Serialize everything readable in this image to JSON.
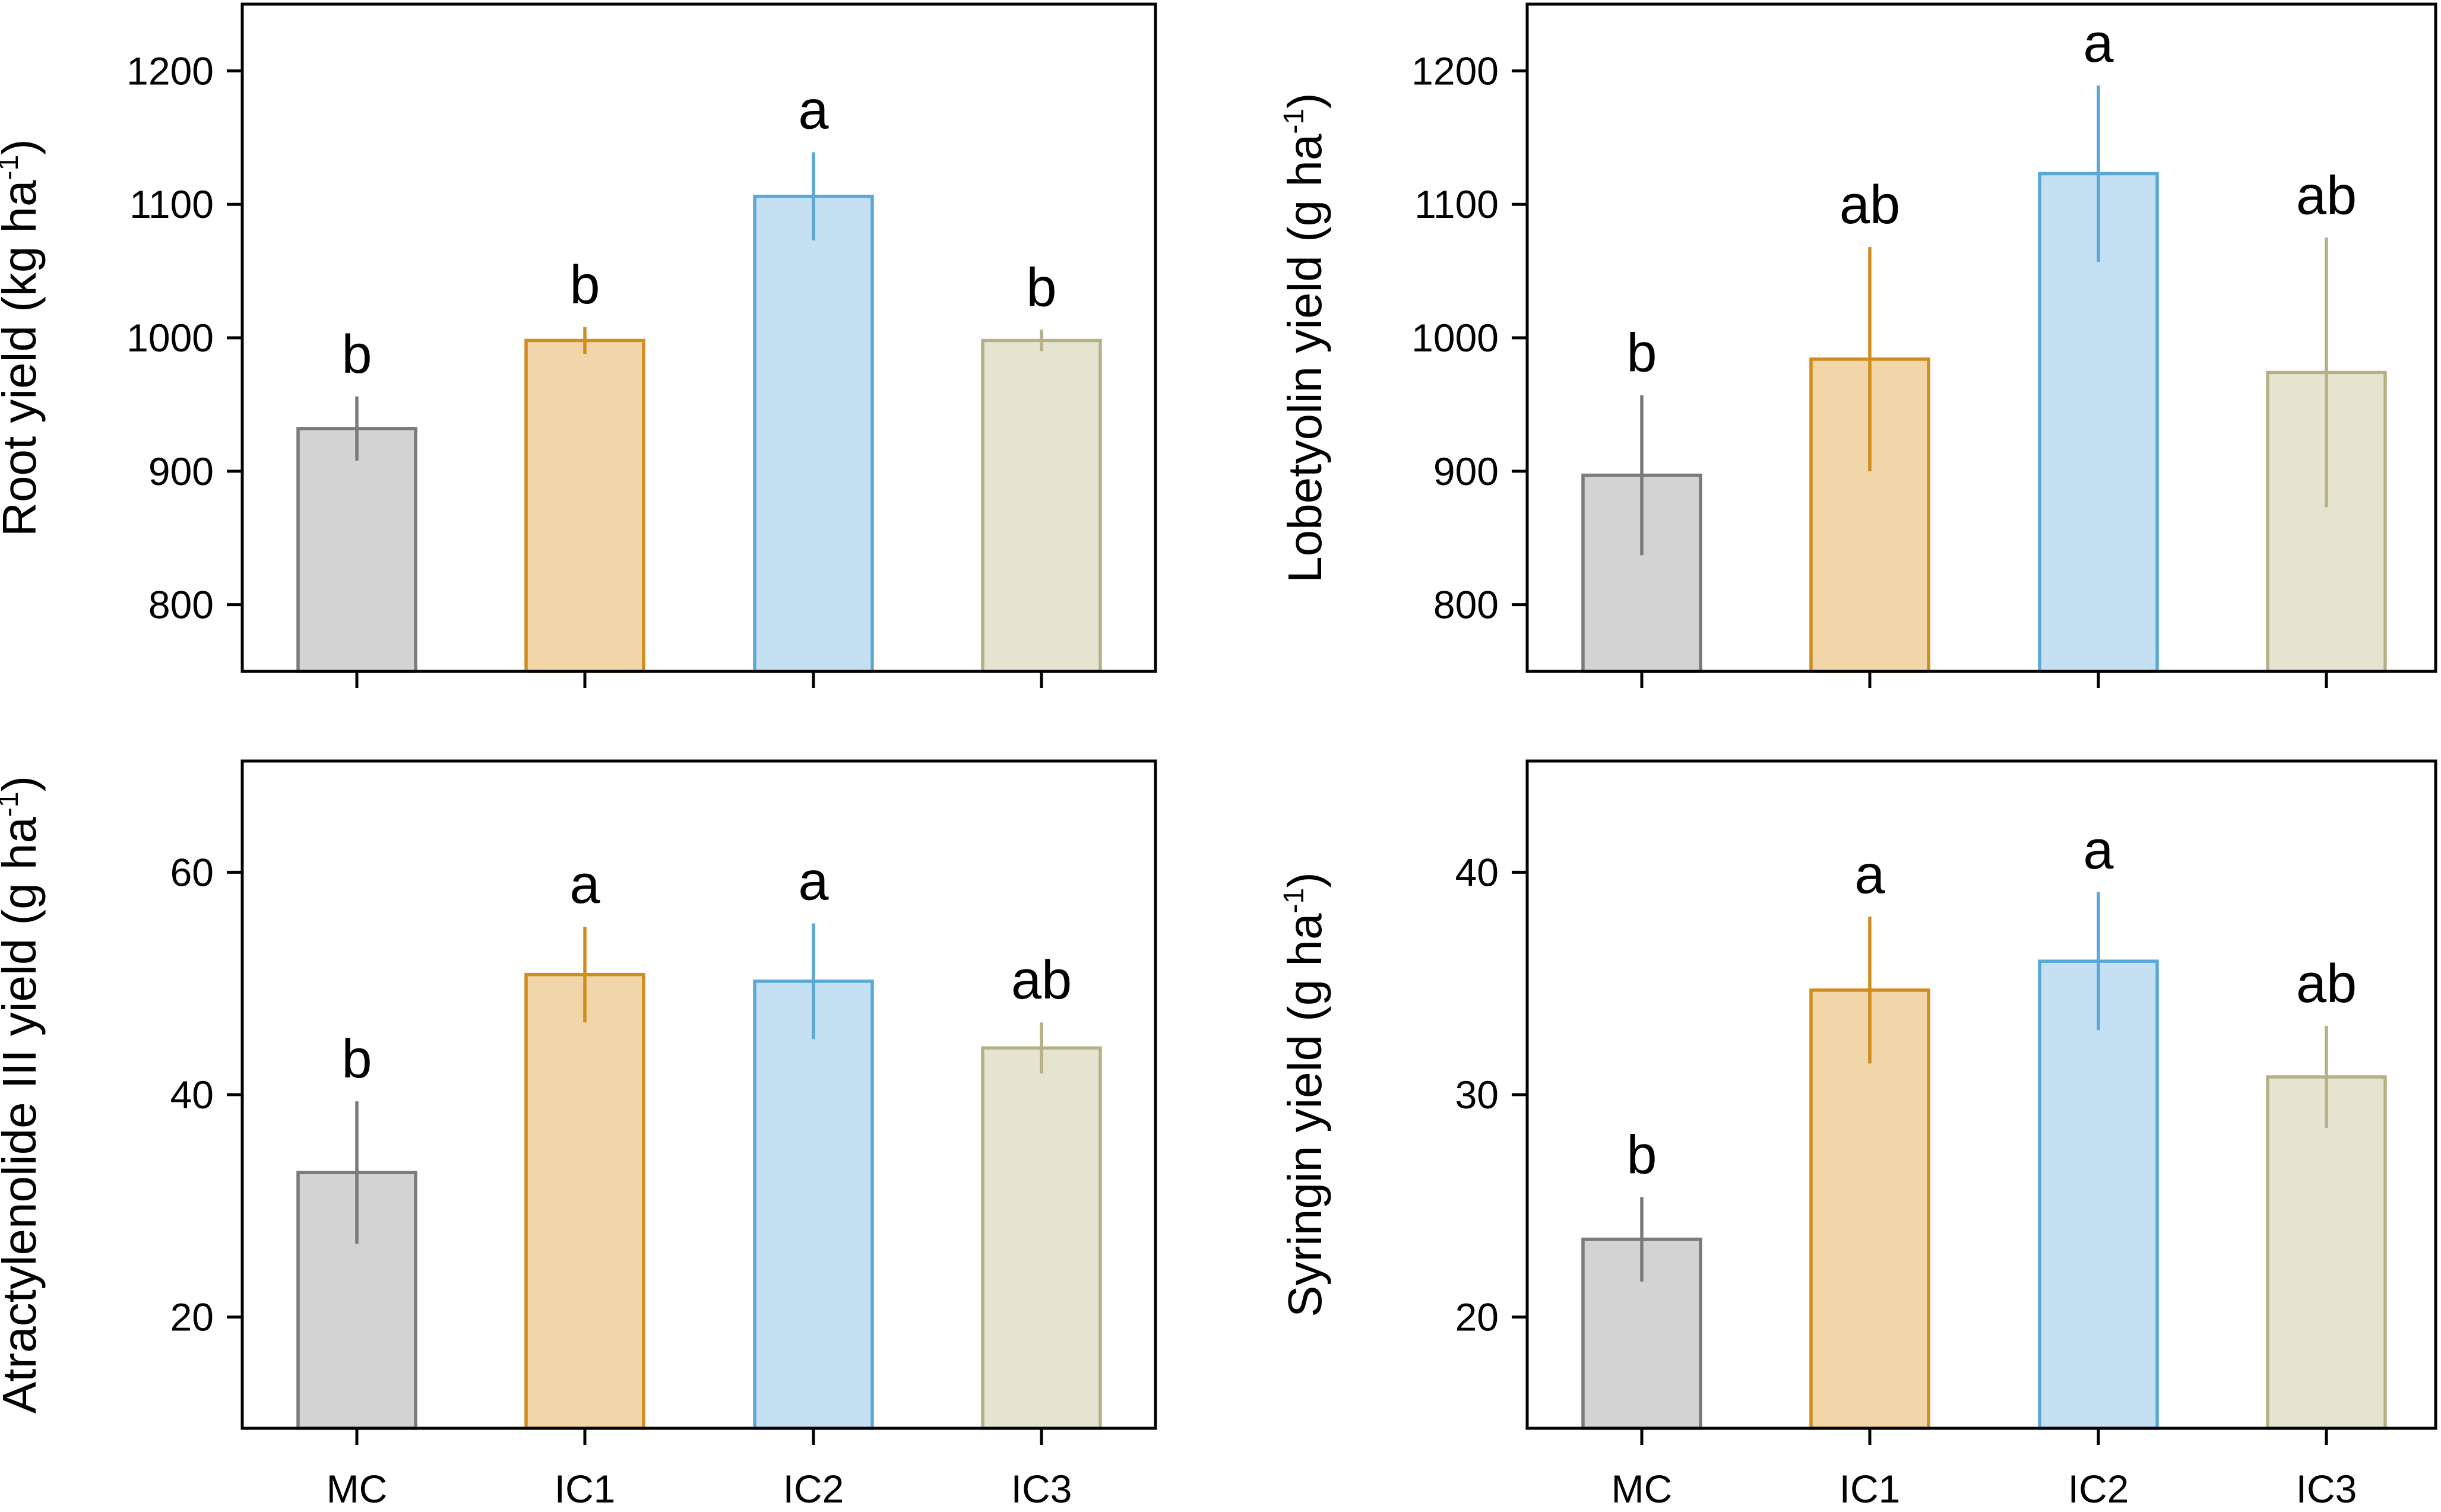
{
  "chart_data": [
    {
      "type": "bar",
      "panel": "top-left",
      "categories": [
        "MC",
        "IC1",
        "IC2",
        "IC3"
      ],
      "values": [
        932,
        998,
        1106,
        998
      ],
      "errors": [
        24,
        10,
        33,
        8
      ],
      "letters": [
        "b",
        "b",
        "a",
        "b"
      ],
      "ylabel": {
        "main": "Root yield (kg ha",
        "sup": "-1",
        "end": ")"
      },
      "ylim": [
        750,
        1250
      ],
      "yticks": [
        800,
        900,
        1000,
        1100,
        1200
      ],
      "show_xlabels": false
    },
    {
      "type": "bar",
      "panel": "top-right",
      "categories": [
        "MC",
        "IC1",
        "IC2",
        "IC3"
      ],
      "values": [
        897,
        984,
        1123,
        974
      ],
      "errors": [
        60,
        84,
        66,
        101
      ],
      "letters": [
        "b",
        "ab",
        "a",
        "ab"
      ],
      "ylabel": {
        "main": "Lobetyolin yield (g ha",
        "sup": "-1",
        "end": ")"
      },
      "ylim": [
        750,
        1250
      ],
      "yticks": [
        800,
        900,
        1000,
        1100,
        1200
      ],
      "show_xlabels": false
    },
    {
      "type": "bar",
      "panel": "bottom-left",
      "categories": [
        "MC",
        "IC1",
        "IC2",
        "IC3"
      ],
      "values": [
        33,
        50.8,
        50.2,
        44.2
      ],
      "errors": [
        6.4,
        4.3,
        5.2,
        2.3
      ],
      "letters": [
        "b",
        "a",
        "a",
        "ab"
      ],
      "ylabel": {
        "main": "Atractylenolide III yield (g ha",
        "sup": "-1",
        "end": ")"
      },
      "ylim": [
        10,
        70
      ],
      "yticks": [
        20,
        40,
        60
      ],
      "show_xlabels": true
    },
    {
      "type": "bar",
      "panel": "bottom-right",
      "categories": [
        "MC",
        "IC1",
        "IC2",
        "IC3"
      ],
      "values": [
        23.5,
        34.7,
        36,
        30.8
      ],
      "errors": [
        1.9,
        3.3,
        3.1,
        2.3
      ],
      "letters": [
        "b",
        "a",
        "a",
        "ab"
      ],
      "ylabel": {
        "main": "Syringin yield (g ha",
        "sup": "-1",
        "end": ")"
      },
      "ylim": [
        15,
        45
      ],
      "yticks": [
        20,
        30,
        40
      ],
      "show_xlabels": true
    }
  ],
  "colors": {
    "fills": [
      "#d3d3d3",
      "#f0d6a9",
      "#c5e0f3",
      "#e5e4d1"
    ],
    "strokes": [
      "#7a7a7a",
      "#d08c1c",
      "#5aa8d8",
      "#b5b184"
    ],
    "frame": "#000000"
  }
}
